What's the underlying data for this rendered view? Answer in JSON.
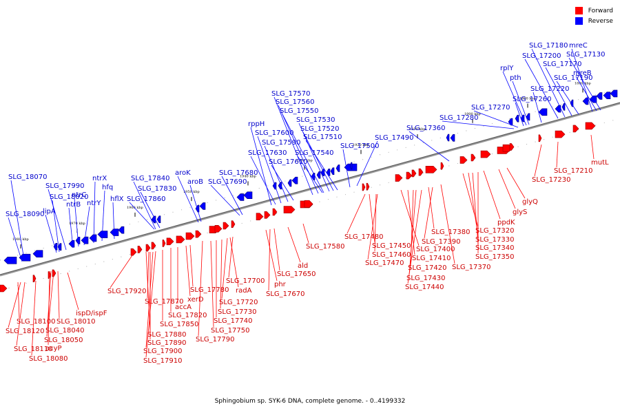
{
  "legend": {
    "items": [
      {
        "label": "Forward",
        "color": "#ff0000"
      },
      {
        "label": "Reverse",
        "color": "#0000ff"
      }
    ]
  },
  "caption": "Sphingobium sp. SYK-6 DNA, complete genome. - 0..4199332",
  "scale_labels": [
    "1980 kbp",
    "1970 kbp",
    "1960 kbp",
    "1950 kbp",
    "1940 kbp",
    "1930 kbp",
    "1920 kbp",
    "1910 kbp",
    "1900 kbp",
    "1890 kbp",
    "1880 kbp"
  ],
  "reverse_genes": [
    "SLG_18070",
    "SLG_18090",
    "lipA",
    "SLG_18020",
    "SLG_17990",
    "ntrB",
    "ntrC",
    "ntrY",
    "ntrX",
    "hfq",
    "hflX",
    "SLG_17840",
    "SLG_17830",
    "SLG_17860",
    "aroK",
    "aroB",
    "SLG_17680",
    "SLG_17690",
    "SLG_17630",
    "SLG_17600",
    "SLG_17590",
    "SLG_17610",
    "rppH",
    "SLG_17570",
    "SLG_17560",
    "SLG_17550",
    "SLG_17530",
    "SLG_17520",
    "SLG_17510",
    "SLG_17540",
    "SLG_17500",
    "SLG_17490",
    "SLG_17360",
    "SLG_17280",
    "SLG_17270",
    "SLG_17260",
    "rplY",
    "pth",
    "SLG_17220",
    "SLG_17200",
    "SLG_17180",
    "mreC",
    "SLG_17170",
    "SLG_17130",
    "SLG_17190",
    "mreB"
  ],
  "forward_genes": [
    "SLG_18100",
    "SLG_18120",
    "SLG_18110",
    "SLG_18080",
    "acyP",
    "SLG_18050",
    "SLG_18040",
    "SLG_18010",
    "ispD/ispF",
    "SLG_17920",
    "SLG_17870",
    "SLG_17880",
    "SLG_17890",
    "SLG_17900",
    "SLG_17910",
    "SLG_17850",
    "SLG_17820",
    "accA",
    "xerD",
    "SLG_17780",
    "SLG_17790",
    "SLG_17750",
    "SLG_17740",
    "SLG_17730",
    "SLG_17720",
    "radA",
    "SLG_17700",
    "phr",
    "SLG_17670",
    "SLG_17650",
    "ald",
    "SLG_17580",
    "SLG_17480",
    "SLG_17450",
    "SLG_17460",
    "SLG_17470",
    "SLG_17400",
    "SLG_17410",
    "SLG_17420",
    "SLG_17430",
    "SLG_17440",
    "SLG_17380",
    "SLG_17390",
    "SLG_17370",
    "SLG_17320",
    "SLG_17330",
    "SLG_17340",
    "SLG_17350",
    "ppdK",
    "glyS",
    "glyQ",
    "SLG_17230",
    "SLG_17210",
    "mutL"
  ]
}
